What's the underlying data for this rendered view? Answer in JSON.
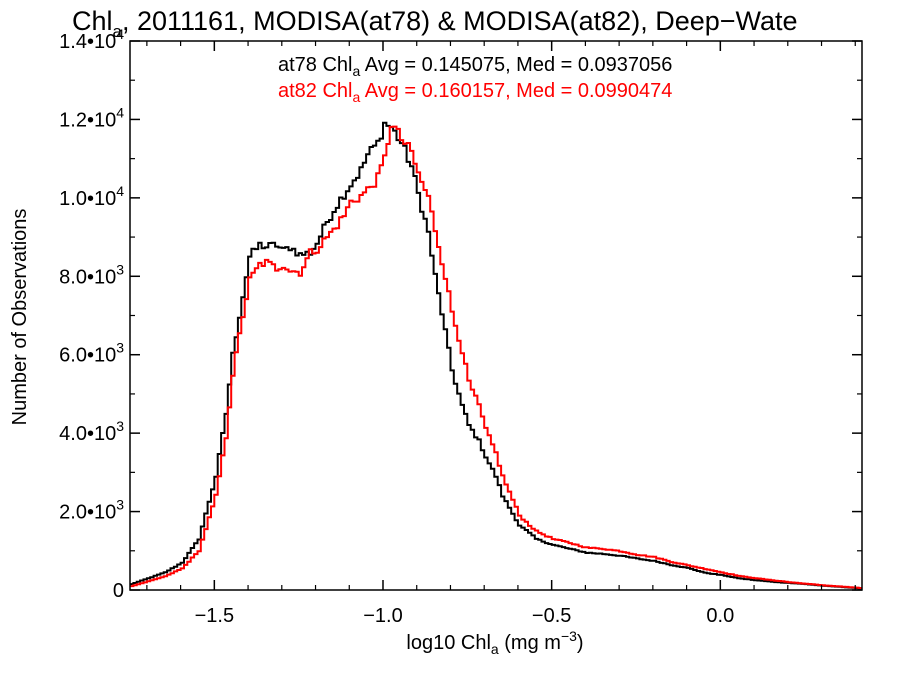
{
  "chart_data": {
    "type": "line",
    "title": {
      "prefix": "Chl",
      "sub": "a",
      "rest": ", 2011161, MODISA(at78) & MODISA(at82), Deep−Wate"
    },
    "xlabel": {
      "prefix": "log10 Chl",
      "sub": "a",
      "mid": " (mg m",
      "sup": "−3",
      "end": ")"
    },
    "ylabel": "Number of Observations",
    "xlim": [
      -1.75,
      0.42
    ],
    "ylim": [
      0,
      14000
    ],
    "x_ticks": [
      -1.5,
      -1.0,
      -0.5,
      0.0
    ],
    "x_tick_labels": [
      "−1.5",
      "−1.0",
      "−0.5",
      "0.0"
    ],
    "y_ticks": [
      0,
      2000,
      4000,
      6000,
      8000,
      10000,
      12000,
      14000
    ],
    "y_tick_labels": [
      {
        "base": "0",
        "exp": ""
      },
      {
        "base": "2.0•10",
        "exp": "3"
      },
      {
        "base": "4.0•10",
        "exp": "3"
      },
      {
        "base": "6.0•10",
        "exp": "3"
      },
      {
        "base": "8.0•10",
        "exp": "3"
      },
      {
        "base": "1.0•10",
        "exp": "4"
      },
      {
        "base": "1.2•10",
        "exp": "4"
      },
      {
        "base": "1.4•10",
        "exp": "4"
      }
    ],
    "step": 0.01,
    "annotations": [
      {
        "prefix": "at78 Chl",
        "sub": "a",
        "rest": " Avg = 0.145075, Med = 0.0937056",
        "color": "#000000"
      },
      {
        "prefix": "at82 Chl",
        "sub": "a",
        "rest": " Avg = 0.160157, Med = 0.0990474",
        "color": "#ff0000"
      }
    ],
    "series": [
      {
        "color": "#000000",
        "x": [
          -1.75,
          -1.7,
          -1.65,
          -1.6,
          -1.55,
          -1.5,
          -1.47,
          -1.45,
          -1.42,
          -1.4,
          -1.37,
          -1.35,
          -1.32,
          -1.3,
          -1.28,
          -1.25,
          -1.22,
          -1.2,
          -1.17,
          -1.15,
          -1.12,
          -1.1,
          -1.07,
          -1.05,
          -1.02,
          -1.0,
          -0.98,
          -0.95,
          -0.92,
          -0.9,
          -0.87,
          -0.85,
          -0.82,
          -0.8,
          -0.77,
          -0.75,
          -0.72,
          -0.7,
          -0.67,
          -0.65,
          -0.62,
          -0.6,
          -0.57,
          -0.55,
          -0.5,
          -0.45,
          -0.4,
          -0.35,
          -0.3,
          -0.25,
          -0.2,
          -0.15,
          -0.1,
          -0.05,
          0.0,
          0.05,
          0.1,
          0.15,
          0.2,
          0.25,
          0.3,
          0.35,
          0.4,
          0.42
        ],
        "y": [
          150,
          300,
          450,
          700,
          1300,
          2900,
          4500,
          6000,
          7500,
          8500,
          8800,
          8750,
          8800,
          8650,
          8750,
          8550,
          8600,
          8850,
          9400,
          9700,
          10100,
          10350,
          10700,
          11100,
          11400,
          11900,
          11800,
          11400,
          10800,
          10100,
          9100,
          8000,
          6600,
          5600,
          4700,
          4200,
          3800,
          3400,
          2900,
          2400,
          1950,
          1650,
          1450,
          1300,
          1150,
          1050,
          950,
          920,
          870,
          800,
          740,
          640,
          560,
          440,
          380,
          300,
          250,
          210,
          180,
          150,
          110,
          80,
          50,
          30
        ]
      },
      {
        "color": "#ff0000",
        "x": [
          -1.75,
          -1.7,
          -1.65,
          -1.6,
          -1.55,
          -1.5,
          -1.47,
          -1.45,
          -1.42,
          -1.4,
          -1.37,
          -1.35,
          -1.32,
          -1.3,
          -1.28,
          -1.25,
          -1.22,
          -1.2,
          -1.17,
          -1.15,
          -1.12,
          -1.1,
          -1.07,
          -1.05,
          -1.02,
          -1.0,
          -0.98,
          -0.95,
          -0.92,
          -0.9,
          -0.87,
          -0.85,
          -0.82,
          -0.8,
          -0.77,
          -0.75,
          -0.72,
          -0.7,
          -0.67,
          -0.65,
          -0.62,
          -0.6,
          -0.57,
          -0.55,
          -0.5,
          -0.45,
          -0.4,
          -0.35,
          -0.3,
          -0.25,
          -0.2,
          -0.15,
          -0.1,
          -0.05,
          0.0,
          0.05,
          0.1,
          0.15,
          0.2,
          0.25,
          0.3,
          0.35,
          0.4,
          0.42
        ],
        "y": [
          100,
          220,
          350,
          550,
          1000,
          2400,
          3900,
          5500,
          7000,
          7900,
          8300,
          8350,
          8200,
          8300,
          8150,
          8100,
          8600,
          8700,
          9000,
          9200,
          9550,
          9900,
          10050,
          10200,
          10500,
          11000,
          11900,
          11500,
          11150,
          10600,
          10000,
          9200,
          8000,
          7100,
          6100,
          5300,
          4700,
          4100,
          3500,
          2900,
          2300,
          1900,
          1650,
          1500,
          1300,
          1200,
          1080,
          1050,
          990,
          900,
          840,
          720,
          630,
          540,
          450,
          360,
          300,
          250,
          200,
          160,
          120,
          90,
          60,
          40
        ]
      }
    ]
  }
}
